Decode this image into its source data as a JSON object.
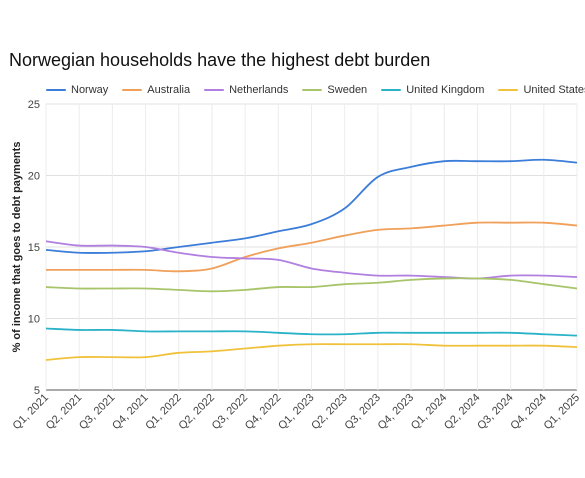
{
  "chart_data": {
    "type": "line",
    "title": "Norwegian households have the highest debt burden",
    "xlabel": "",
    "ylabel": "% of income that goes to debt payments",
    "ylim": [
      5,
      25
    ],
    "yticks": [
      5,
      10,
      15,
      20,
      25
    ],
    "grid": true,
    "legend": "top",
    "categories": [
      "Q1, 2021",
      "Q2, 2021",
      "Q3, 2021",
      "Q4, 2021",
      "Q1, 2022",
      "Q2, 2022",
      "Q3, 2022",
      "Q4, 2022",
      "Q1, 2023",
      "Q2, 2023",
      "Q3, 2023",
      "Q4, 2023",
      "Q1, 2024",
      "Q2, 2024",
      "Q3, 2024",
      "Q4, 2024",
      "Q1, 2025"
    ],
    "series": [
      {
        "name": "Norway",
        "color": "#3b7dd8",
        "values": [
          14.8,
          14.6,
          14.6,
          14.7,
          15.0,
          15.3,
          15.6,
          16.1,
          16.6,
          17.7,
          19.9,
          20.6,
          21.0,
          21.0,
          21.0,
          21.1,
          20.9
        ]
      },
      {
        "name": "Australia",
        "color": "#f0a05a",
        "values": [
          13.4,
          13.4,
          13.4,
          13.4,
          13.3,
          13.5,
          14.3,
          14.9,
          15.3,
          15.8,
          16.2,
          16.3,
          16.5,
          16.7,
          16.7,
          16.7,
          16.5
        ]
      },
      {
        "name": "Netherlands",
        "color": "#b07fe0",
        "values": [
          15.4,
          15.1,
          15.1,
          15.0,
          14.6,
          14.3,
          14.2,
          14.1,
          13.5,
          13.2,
          13.0,
          13.0,
          12.9,
          12.8,
          13.0,
          13.0,
          12.9
        ]
      },
      {
        "name": "Sweden",
        "color": "#a7c46a",
        "values": [
          12.2,
          12.1,
          12.1,
          12.1,
          12.0,
          11.9,
          12.0,
          12.2,
          12.2,
          12.4,
          12.5,
          12.7,
          12.8,
          12.8,
          12.7,
          12.4,
          12.1
        ]
      },
      {
        "name": "United Kingdom",
        "color": "#2ab3c8",
        "values": [
          9.3,
          9.2,
          9.2,
          9.1,
          9.1,
          9.1,
          9.1,
          9.0,
          8.9,
          8.9,
          9.0,
          9.0,
          9.0,
          9.0,
          9.0,
          8.9,
          8.8
        ]
      },
      {
        "name": "United States",
        "color": "#f0c23c",
        "values": [
          7.1,
          7.3,
          7.3,
          7.3,
          7.6,
          7.7,
          7.9,
          8.1,
          8.2,
          8.2,
          8.2,
          8.2,
          8.1,
          8.1,
          8.1,
          8.1,
          8.0
        ]
      }
    ]
  }
}
